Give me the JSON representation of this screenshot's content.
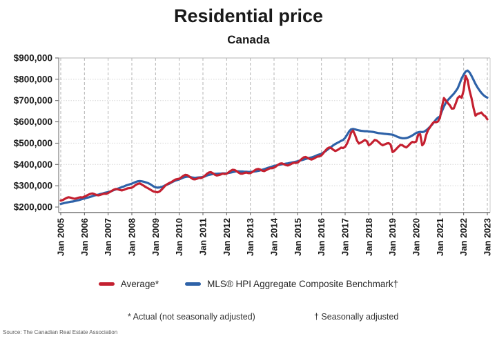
{
  "header": {
    "title": "Residential price",
    "subtitle": "Canada"
  },
  "legend": {
    "average_label": "Average*",
    "benchmark_label": "MLS® HPI Aggregate Composite Benchmark†"
  },
  "footnotes": {
    "average_note": "* Actual (not seasonally adjusted)",
    "benchmark_note": "† Seasonally adjusted"
  },
  "source": "Source: The Canadian Real Estate Association",
  "colors": {
    "average_line": "#c42030",
    "benchmark_line": "#2e62a8"
  },
  "chart_data": {
    "type": "line",
    "title": "Residential price",
    "subtitle": "Canada",
    "x_start": "2005-01",
    "x_end": "2023-01",
    "x_interval_months": 1,
    "x_tick_labels": [
      "Jan 2005",
      "Jan 2006",
      "Jan 2007",
      "Jan 2008",
      "Jan 2009",
      "Jan 2010",
      "Jan 2011",
      "Jan 2012",
      "Jan 2013",
      "Jan 2014",
      "Jan 2015",
      "Jan 2016",
      "Jan 2017",
      "Jan 2018",
      "Jan 2019",
      "Jan 2020",
      "Jan 2021",
      "Jan 2022",
      "Jan 2023"
    ],
    "y_tick_labels": [
      "$200,000",
      "$300,000",
      "$400,000",
      "$500,000",
      "$600,000",
      "$700,000",
      "$800,000",
      "$900,000"
    ],
    "ylim": [
      200000,
      900000
    ],
    "y_unit": "CAD",
    "grid": {
      "vertical": "dashed",
      "horizontal": "dotted-light"
    },
    "legend_position": "bottom",
    "series": [
      {
        "name": "Average*",
        "color": "#c42030",
        "values": [
          230000,
          233000,
          238000,
          243000,
          246000,
          244000,
          241000,
          239000,
          241000,
          244000,
          246000,
          245000,
          249000,
          253000,
          258000,
          262000,
          264000,
          261000,
          257000,
          255000,
          257000,
          260000,
          263000,
          262000,
          266000,
          271000,
          277000,
          282000,
          285000,
          283000,
          280000,
          278000,
          281000,
          285000,
          288000,
          289000,
          291000,
          297000,
          304000,
          309000,
          311000,
          306000,
          300000,
          294000,
          289000,
          284000,
          278000,
          273000,
          271000,
          269000,
          273000,
          281000,
          291000,
          301000,
          308000,
          313000,
          317000,
          323000,
          329000,
          331000,
          333000,
          339000,
          346000,
          351000,
          350000,
          344000,
          337000,
          331000,
          330000,
          333000,
          337000,
          336000,
          340000,
          347000,
          356000,
          362000,
          364000,
          359000,
          352000,
          348000,
          350000,
          353000,
          357000,
          355000,
          357000,
          363000,
          370000,
          375000,
          374000,
          369000,
          362000,
          357000,
          357000,
          360000,
          362000,
          359000,
          359000,
          364000,
          371000,
          377000,
          379000,
          376000,
          371000,
          369000,
          373000,
          378000,
          382000,
          382000,
          385000,
          391000,
          398000,
          404000,
          405000,
          401000,
          397000,
          395000,
          399000,
          404000,
          408000,
          407000,
          409000,
          417000,
          426000,
          433000,
          435000,
          431000,
          426000,
          423000,
          427000,
          432000,
          437000,
          438000,
          443000,
          453000,
          465000,
          475000,
          480000,
          476000,
          469000,
          463000,
          467000,
          473000,
          479000,
          477000,
          483000,
          499000,
          521000,
          549000,
          559000,
          539000,
          512000,
          498000,
          503000,
          509000,
          515000,
          509000,
          490000,
          496000,
          506000,
          515000,
          512000,
          505000,
          496000,
          490000,
          494000,
          498000,
          500000,
          494000,
          458000,
          464000,
          474000,
          484000,
          492000,
          490000,
          484000,
          480000,
          488000,
          498000,
          506000,
          504000,
          508000,
          540000,
          542000,
          490000,
          500000,
          538000,
          562000,
          575000,
          590000,
          600000,
          598000,
          602000,
          618000,
          670000,
          712000,
          700000,
          688000,
          678000,
          662000,
          663000,
          686000,
          712000,
          720000,
          713000,
          748000,
          816000,
          796000,
          746000,
          711000,
          665000,
          629000,
          637000,
          640000,
          644000,
          632000,
          626000,
          612000
        ]
      },
      {
        "name": "MLS® HPI Aggregate Composite Benchmark†",
        "color": "#2e62a8",
        "values": [
          215000,
          217000,
          219000,
          221000,
          223000,
          225000,
          226000,
          228000,
          230000,
          232000,
          235000,
          238000,
          240000,
          243000,
          245000,
          248000,
          251000,
          254000,
          256000,
          258000,
          261000,
          263000,
          266000,
          268000,
          270000,
          273000,
          276000,
          280000,
          283000,
          287000,
          290000,
          294000,
          297000,
          301000,
          304000,
          307000,
          310000,
          314000,
          318000,
          321000,
          322000,
          321000,
          319000,
          316000,
          313000,
          309000,
          303000,
          297000,
          293000,
          291000,
          292000,
          294000,
          298000,
          302000,
          306000,
          310000,
          315000,
          320000,
          324000,
          327000,
          330000,
          334000,
          338000,
          341000,
          343000,
          342000,
          340000,
          338000,
          337000,
          338000,
          339000,
          340000,
          341000,
          344000,
          348000,
          351000,
          353000,
          355000,
          356000,
          356000,
          357000,
          357000,
          358000,
          358000,
          358000,
          360000,
          362000,
          364000,
          366000,
          368000,
          368000,
          367000,
          367000,
          366000,
          366000,
          365000,
          365000,
          366000,
          367000,
          368000,
          370000,
          372000,
          375000,
          378000,
          381000,
          384000,
          387000,
          390000,
          393000,
          395000,
          397000,
          399000,
          401000,
          402000,
          404000,
          405000,
          407000,
          409000,
          411000,
          413000,
          415000,
          418000,
          420000,
          423000,
          426000,
          428000,
          431000,
          433000,
          436000,
          440000,
          444000,
          447000,
          450000,
          456000,
          462000,
          469000,
          476000,
          483000,
          490000,
          496000,
          501000,
          506000,
          511000,
          515000,
          525000,
          540000,
          555000,
          565000,
          567000,
          565000,
          562000,
          560000,
          558000,
          557000,
          556000,
          556000,
          555000,
          554000,
          553000,
          551000,
          549000,
          547000,
          546000,
          545000,
          544000,
          543000,
          542000,
          541000,
          540000,
          536000,
          532000,
          528000,
          525000,
          523000,
          523000,
          524000,
          527000,
          531000,
          536000,
          542000,
          548000,
          551000,
          553000,
          552000,
          554000,
          560000,
          568000,
          577000,
          587000,
          599000,
          611000,
          620000,
          625000,
          650000,
          672000,
          690000,
          702000,
          712000,
          722000,
          732000,
          744000,
          758000,
          780000,
          804000,
          822000,
          836000,
          841000,
          832000,
          816000,
          797000,
          778000,
          762000,
          748000,
          736000,
          726000,
          719000,
          714000
        ]
      }
    ]
  }
}
